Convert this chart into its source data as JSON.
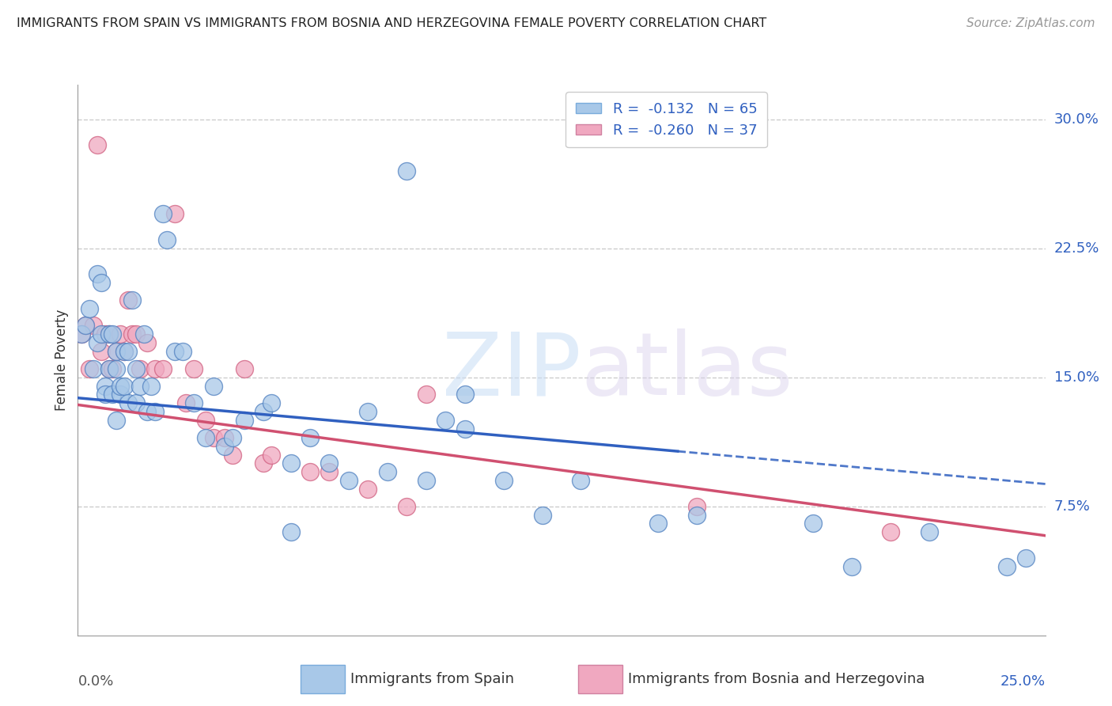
{
  "title": "IMMIGRANTS FROM SPAIN VS IMMIGRANTS FROM BOSNIA AND HERZEGOVINA FEMALE POVERTY CORRELATION CHART",
  "source": "Source: ZipAtlas.com",
  "ylabel": "Female Poverty",
  "ytick_vals": [
    0.075,
    0.15,
    0.225,
    0.3
  ],
  "ytick_labels": [
    "7.5%",
    "15.0%",
    "22.5%",
    "30.0%"
  ],
  "xlim": [
    0.0,
    0.25
  ],
  "ylim": [
    0.0,
    0.32
  ],
  "series1_color": "#a8c8e8",
  "series1_edge": "#5080c0",
  "series2_color": "#f0a8c0",
  "series2_edge": "#d06080",
  "trend1_color": "#3060c0",
  "trend2_color": "#d05070",
  "trend1_x": [
    0.0,
    0.25
  ],
  "trend1_y": [
    0.138,
    0.088
  ],
  "trend1_solid_end_x": 0.155,
  "trend2_x": [
    0.0,
    0.25
  ],
  "trend2_y": [
    0.134,
    0.058
  ],
  "legend1_label": "R =  -0.132   N = 65",
  "legend2_label": "R =  -0.260   N = 37",
  "legend1_color": "#a8c8e8",
  "legend2_color": "#f0a8c0",
  "bottom_label1": "Immigrants from Spain",
  "bottom_label2": "Immigrants from Bosnia and Herzegovina",
  "spain_x": [
    0.001,
    0.002,
    0.003,
    0.004,
    0.005,
    0.005,
    0.006,
    0.006,
    0.007,
    0.007,
    0.008,
    0.008,
    0.009,
    0.009,
    0.01,
    0.01,
    0.01,
    0.011,
    0.011,
    0.012,
    0.012,
    0.013,
    0.013,
    0.014,
    0.015,
    0.015,
    0.016,
    0.017,
    0.018,
    0.019,
    0.02,
    0.022,
    0.023,
    0.025,
    0.027,
    0.03,
    0.033,
    0.035,
    0.038,
    0.04,
    0.043,
    0.048,
    0.05,
    0.055,
    0.06,
    0.065,
    0.07,
    0.075,
    0.08,
    0.09,
    0.095,
    0.1,
    0.11,
    0.12,
    0.13,
    0.15,
    0.16,
    0.19,
    0.2,
    0.22,
    0.24,
    0.245,
    0.1,
    0.085,
    0.055
  ],
  "spain_y": [
    0.175,
    0.18,
    0.19,
    0.155,
    0.21,
    0.17,
    0.175,
    0.205,
    0.145,
    0.14,
    0.155,
    0.175,
    0.14,
    0.175,
    0.155,
    0.125,
    0.165,
    0.14,
    0.145,
    0.165,
    0.145,
    0.165,
    0.135,
    0.195,
    0.155,
    0.135,
    0.145,
    0.175,
    0.13,
    0.145,
    0.13,
    0.245,
    0.23,
    0.165,
    0.165,
    0.135,
    0.115,
    0.145,
    0.11,
    0.115,
    0.125,
    0.13,
    0.135,
    0.1,
    0.115,
    0.1,
    0.09,
    0.13,
    0.095,
    0.09,
    0.125,
    0.12,
    0.09,
    0.07,
    0.09,
    0.065,
    0.07,
    0.065,
    0.04,
    0.06,
    0.04,
    0.045,
    0.14,
    0.27,
    0.06
  ],
  "bosnia_x": [
    0.001,
    0.002,
    0.003,
    0.004,
    0.005,
    0.006,
    0.007,
    0.008,
    0.008,
    0.009,
    0.01,
    0.011,
    0.012,
    0.013,
    0.014,
    0.015,
    0.016,
    0.018,
    0.02,
    0.022,
    0.025,
    0.028,
    0.03,
    0.033,
    0.035,
    0.038,
    0.04,
    0.043,
    0.048,
    0.05,
    0.06,
    0.065,
    0.075,
    0.085,
    0.09,
    0.16,
    0.21
  ],
  "bosnia_y": [
    0.175,
    0.18,
    0.155,
    0.18,
    0.285,
    0.165,
    0.175,
    0.175,
    0.155,
    0.155,
    0.165,
    0.175,
    0.165,
    0.195,
    0.175,
    0.175,
    0.155,
    0.17,
    0.155,
    0.155,
    0.245,
    0.135,
    0.155,
    0.125,
    0.115,
    0.115,
    0.105,
    0.155,
    0.1,
    0.105,
    0.095,
    0.095,
    0.085,
    0.075,
    0.14,
    0.075,
    0.06
  ]
}
